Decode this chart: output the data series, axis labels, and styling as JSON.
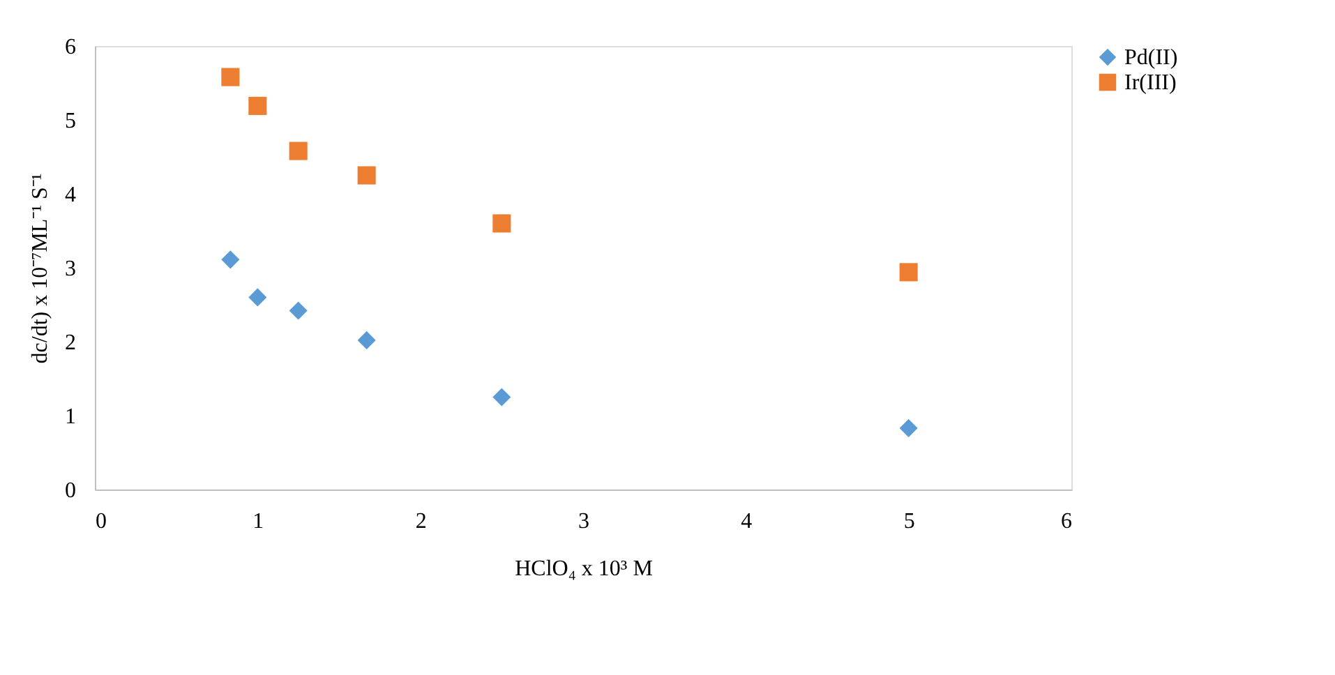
{
  "chart_data": {
    "type": "scatter",
    "xlabel": "HClO₄ x 10³ M",
    "ylabel": "dc/dt) x 10⁻⁷ML⁻¹ S⁻¹",
    "x": [
      0.833,
      1.0,
      1.25,
      1.67,
      2.5,
      5.0
    ],
    "series": [
      {
        "name": "Pd(II)",
        "color": "#5b9bd5",
        "marker": "diamond",
        "values": [
          3.11,
          2.6,
          2.42,
          2.02,
          1.25,
          0.83
        ]
      },
      {
        "name": "Ir(III)",
        "color": "#ed7d31",
        "marker": "square",
        "values": [
          5.58,
          5.19,
          4.58,
          4.25,
          3.6,
          2.94
        ]
      }
    ],
    "xlim": [
      0,
      6
    ],
    "xticks": [
      0,
      1,
      2,
      3,
      4,
      5,
      6
    ],
    "ylim": [
      0,
      6
    ],
    "yticks": [
      0,
      1,
      2,
      3,
      4,
      5,
      6
    ],
    "grid": false,
    "legend": "right"
  }
}
